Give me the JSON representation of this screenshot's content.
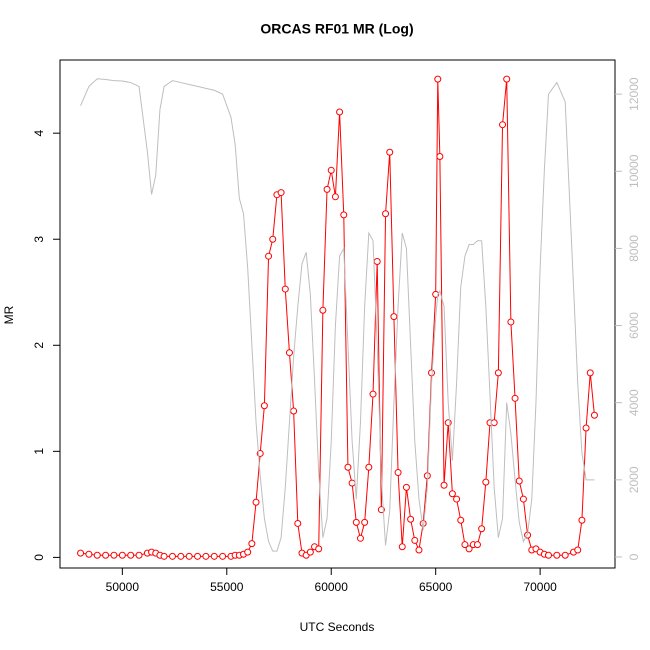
{
  "chart_data": {
    "type": "line",
    "title": "ORCAS RF01 MR (Log)",
    "xlabel": "UTC Seconds",
    "ylabel": "MR",
    "x": [
      48000,
      48400,
      48800,
      49200,
      49600,
      50000,
      50400,
      50800,
      51200,
      51400,
      51600,
      51800,
      52000,
      52400,
      52800,
      53200,
      53600,
      54000,
      54400,
      54800,
      55200,
      55400,
      55600,
      55800,
      56000,
      56200,
      56400,
      56600,
      56800,
      57000,
      57200,
      57400,
      57600,
      57800,
      58000,
      58200,
      58400,
      58600,
      58800,
      59000,
      59200,
      59400,
      59600,
      59800,
      60000,
      60200,
      60400,
      60600,
      60800,
      61000,
      61200,
      61400,
      61600,
      61800,
      62000,
      62200,
      62400,
      62600,
      62800,
      63000,
      63200,
      63400,
      63600,
      63800,
      64000,
      64200,
      64400,
      64600,
      64800,
      65000,
      65100,
      65200,
      65400,
      65600,
      65800,
      66000,
      66200,
      66400,
      66600,
      66800,
      67000,
      67200,
      67400,
      67600,
      67800,
      68000,
      68200,
      68400,
      68600,
      68800,
      69000,
      69200,
      69400,
      69600,
      69800,
      70000,
      70200,
      70400,
      70800,
      71200,
      71600,
      71800,
      72000,
      72200,
      72400,
      72600
    ],
    "series": [
      {
        "color": "#ff0000",
        "marker": "circle",
        "values": [
          0.04,
          0.03,
          0.02,
          0.02,
          0.02,
          0.02,
          0.02,
          0.02,
          0.04,
          0.05,
          0.04,
          0.02,
          0.01,
          0.01,
          0.01,
          0.01,
          0.01,
          0.01,
          0.01,
          0.01,
          0.01,
          0.02,
          0.02,
          0.03,
          0.05,
          0.13,
          0.52,
          0.98,
          1.43,
          2.84,
          3.0,
          3.42,
          3.44,
          2.53,
          1.93,
          1.38,
          0.32,
          0.04,
          0.02,
          0.05,
          0.1,
          0.08,
          2.33,
          3.47,
          3.65,
          3.4,
          4.2,
          3.23,
          0.85,
          0.7,
          0.33,
          0.18,
          0.33,
          0.85,
          1.54,
          2.79,
          0.45,
          3.24,
          3.82,
          2.27,
          0.8,
          0.1,
          0.66,
          0.36,
          0.16,
          0.07,
          0.32,
          0.77,
          1.74,
          2.48,
          4.51,
          3.78,
          0.68,
          1.27,
          0.6,
          0.55,
          0.35,
          0.12,
          0.08,
          0.12,
          0.12,
          0.27,
          0.71,
          1.27,
          1.27,
          1.74,
          4.08,
          4.51,
          2.22,
          1.5,
          0.72,
          0.55,
          0.21,
          0.07,
          0.08,
          0.05,
          0.03,
          0.02,
          0.02,
          0.02,
          0.05,
          0.07,
          0.35,
          1.22,
          1.74,
          1.34
        ]
      },
      {
        "color": "#bebebe",
        "axis": "y2",
        "values": [
          11700,
          12200,
          12400,
          12380,
          12350,
          12340,
          12300,
          12200,
          10500,
          9400,
          9900,
          11600,
          12200,
          12350,
          12300,
          12250,
          12200,
          12150,
          12100,
          12000,
          11400,
          10700,
          9300,
          8900,
          7500,
          5500,
          3500,
          2100,
          1000,
          400,
          150,
          150,
          500,
          1800,
          3500,
          5200,
          6500,
          7600,
          7900,
          6800,
          4600,
          2200,
          500,
          1000,
          3000,
          6000,
          7800,
          8000,
          5500,
          3000,
          1500,
          3500,
          6500,
          8400,
          8200,
          5500,
          2000,
          300,
          1200,
          4000,
          6500,
          8400,
          8000,
          5500,
          3000,
          1500,
          700,
          1800,
          4500,
          6200,
          6800,
          6900,
          6500,
          4000,
          2500,
          4500,
          7000,
          7800,
          8100,
          8100,
          8200,
          8200,
          6500,
          4200,
          1800,
          500,
          1000,
          4000,
          3200,
          2000,
          900,
          400,
          600,
          1500,
          4000,
          7500,
          10000,
          12000,
          12300,
          11800,
          7000,
          4500,
          2700,
          2000,
          2000,
          2000
        ]
      }
    ],
    "xlim": [
      47016,
      73584
    ],
    "xticks": [
      50000,
      55000,
      60000,
      65000,
      70000
    ],
    "ylim": [
      -0.1,
      4.69
    ],
    "yticks": [
      0,
      1,
      2,
      3,
      4
    ],
    "y2lim": [
      -286,
      12885
    ],
    "y2ticks": [
      0,
      2000,
      4000,
      6000,
      8000,
      10000,
      12000
    ]
  }
}
